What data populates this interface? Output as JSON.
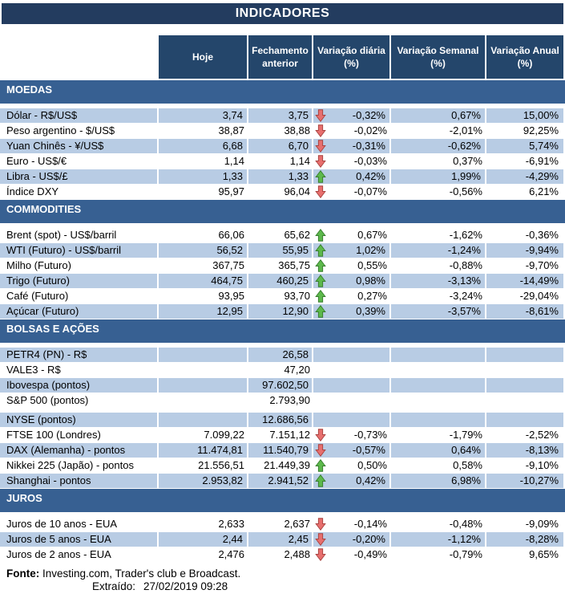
{
  "chart_data": {
    "type": "table",
    "title": "INDICADORES",
    "columns": [
      "Hoje",
      "Fechamento anterior",
      "Variação diária (%)",
      "Variação Semanal (%)",
      "Variação Anual (%)"
    ],
    "sections": [
      {
        "label": "MOEDAS",
        "rows": [
          {
            "label": "Dólar - R$/US$",
            "today": "3,74",
            "prev": "3,75",
            "arrow": "down",
            "daily": "-0,32%",
            "weekly": "0,67%",
            "annual": "15,00%",
            "shaded": true
          },
          {
            "label": "Peso argentino - $/US$",
            "today": "38,87",
            "prev": "38,88",
            "arrow": "down",
            "daily": "-0,02%",
            "weekly": "-2,01%",
            "annual": "92,25%",
            "shaded": false
          },
          {
            "label": "Yuan Chinês - ¥/US$",
            "today": "6,68",
            "prev": "6,70",
            "arrow": "down",
            "daily": "-0,31%",
            "weekly": "-0,62%",
            "annual": "5,74%",
            "shaded": true
          },
          {
            "label": "Euro - US$/€",
            "today": "1,14",
            "prev": "1,14",
            "arrow": "down",
            "daily": "-0,03%",
            "weekly": "0,37%",
            "annual": "-6,91%",
            "shaded": false
          },
          {
            "label": "Libra - US$/£",
            "today": "1,33",
            "prev": "1,33",
            "arrow": "up",
            "daily": "0,42%",
            "weekly": "1,99%",
            "annual": "-4,29%",
            "shaded": true
          },
          {
            "label": "Índice DXY",
            "today": "95,97",
            "prev": "96,04",
            "arrow": "down",
            "daily": "-0,07%",
            "weekly": "-0,56%",
            "annual": "6,21%",
            "shaded": false
          }
        ]
      },
      {
        "label": "COMMODITIES",
        "rows": [
          {
            "label": "Brent (spot) - US$/barril",
            "today": "66,06",
            "prev": "65,62",
            "arrow": "up",
            "daily": "0,67%",
            "weekly": "-1,62%",
            "annual": "-0,36%",
            "shaded": false
          },
          {
            "label": "WTI (Futuro) - US$/barril",
            "today": "56,52",
            "prev": "55,95",
            "arrow": "up",
            "daily": "1,02%",
            "weekly": "-1,24%",
            "annual": "-9,94%",
            "shaded": true
          },
          {
            "label": "Milho (Futuro)",
            "today": "367,75",
            "prev": "365,75",
            "arrow": "up",
            "daily": "0,55%",
            "weekly": "-0,88%",
            "annual": "-9,70%",
            "shaded": false
          },
          {
            "label": "Trigo (Futuro)",
            "today": "464,75",
            "prev": "460,25",
            "arrow": "up",
            "daily": "0,98%",
            "weekly": "-3,13%",
            "annual": "-14,49%",
            "shaded": true
          },
          {
            "label": "Café (Futuro)",
            "today": "93,95",
            "prev": "93,70",
            "arrow": "up",
            "daily": "0,27%",
            "weekly": "-3,24%",
            "annual": "-29,04%",
            "shaded": false
          },
          {
            "label": "Açúcar (Futuro)",
            "today": "12,95",
            "prev": "12,90",
            "arrow": "up",
            "daily": "0,39%",
            "weekly": "-3,57%",
            "annual": "-8,61%",
            "shaded": true
          }
        ]
      },
      {
        "label": "BOLSAS E AÇÕES",
        "rows": [
          {
            "label": "PETR4 (PN) - R$",
            "today": "",
            "prev": "26,58",
            "arrow": "",
            "daily": "",
            "weekly": "",
            "annual": "",
            "shaded": true
          },
          {
            "label": "VALE3 - R$",
            "today": "",
            "prev": "47,20",
            "arrow": "",
            "daily": "",
            "weekly": "",
            "annual": "",
            "shaded": false
          },
          {
            "label": "Ibovespa (pontos)",
            "today": "",
            "prev": "97.602,50",
            "arrow": "",
            "daily": "",
            "weekly": "",
            "annual": "",
            "shaded": true
          },
          {
            "label": "S&P 500 (pontos)",
            "today": "",
            "prev": "2.793,90",
            "arrow": "",
            "daily": "",
            "weekly": "",
            "annual": "",
            "shaded": false,
            "spacer_after": true
          },
          {
            "label": "NYSE (pontos)",
            "today": "",
            "prev": "12.686,56",
            "arrow": "",
            "daily": "",
            "weekly": "",
            "annual": "",
            "shaded": true
          },
          {
            "label": "FTSE 100 (Londres)",
            "today": "7.099,22",
            "prev": "7.151,12",
            "arrow": "down",
            "daily": "-0,73%",
            "weekly": "-1,79%",
            "annual": "-2,52%",
            "shaded": false
          },
          {
            "label": "DAX (Alemanha) - pontos",
            "today": "11.474,81",
            "prev": "11.540,79",
            "arrow": "down",
            "daily": "-0,57%",
            "weekly": "0,64%",
            "annual": "-8,13%",
            "shaded": true
          },
          {
            "label": "Nikkei 225 (Japão) - pontos",
            "today": "21.556,51",
            "prev": "21.449,39",
            "arrow": "up",
            "daily": "0,50%",
            "weekly": "0,58%",
            "annual": "-9,10%",
            "shaded": false
          },
          {
            "label": "Shanghai - pontos",
            "today": "2.953,82",
            "prev": "2.941,52",
            "arrow": "up",
            "daily": "0,42%",
            "weekly": "6,98%",
            "annual": "-10,27%",
            "shaded": true
          }
        ]
      },
      {
        "label": "JUROS",
        "rows": [
          {
            "label": "Juros de 10 anos - EUA",
            "today": "2,633",
            "prev": "2,637",
            "arrow": "down",
            "daily": "-0,14%",
            "weekly": "-0,48%",
            "annual": "-9,09%",
            "shaded": false
          },
          {
            "label": "Juros de 5 anos - EUA",
            "today": "2,44",
            "prev": "2,45",
            "arrow": "down",
            "daily": "-0,20%",
            "weekly": "-1,12%",
            "annual": "-8,28%",
            "shaded": true
          },
          {
            "label": "Juros de 2 anos - EUA",
            "today": "2,476",
            "prev": "2,488",
            "arrow": "down",
            "daily": "-0,49%",
            "weekly": "-0,79%",
            "annual": "9,65%",
            "shaded": false
          }
        ]
      }
    ]
  },
  "footer": {
    "source_label": "Fonte:",
    "source_text": " Investing.com, Trader's club e Broadcast.",
    "extracted_label": "Extraído:",
    "extracted_value": "27/02/2019 09:28"
  },
  "colors": {
    "title_bar": "#233C5F",
    "header_cell": "#24466B",
    "section_bar": "#376092",
    "row_shaded": "#B8CCE4",
    "arrow_up_fill": "#5DB94C",
    "arrow_up_stroke": "#377D2E",
    "arrow_down_fill": "#E76F6E",
    "arrow_down_stroke": "#A8423F"
  }
}
